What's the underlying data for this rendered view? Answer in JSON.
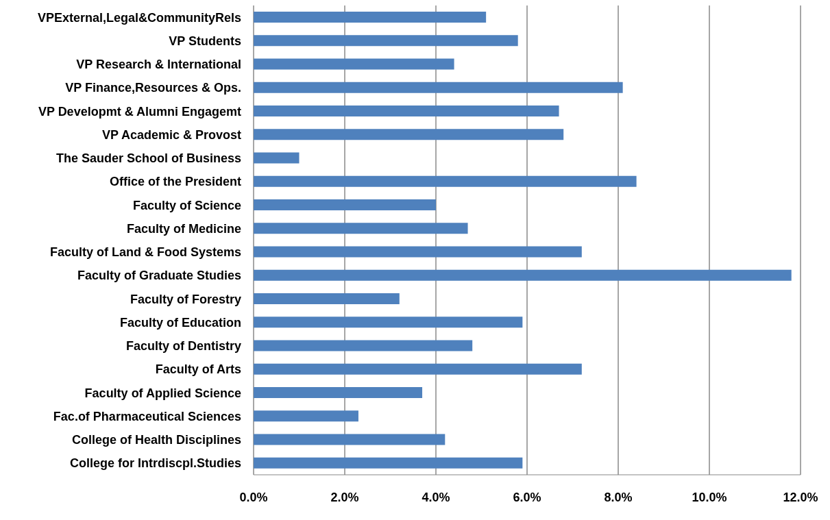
{
  "chart_data": {
    "type": "bar",
    "orientation": "horizontal",
    "grid": "x",
    "legend": false,
    "categories": [
      "VPExternal,Legal&CommunityRels",
      "VP Students",
      "VP Research & International",
      "VP Finance,Resources & Ops.",
      "VP Developmt & Alumni Engagemt",
      "VP Academic & Provost",
      "The Sauder School of Business",
      "Office of the President",
      "Faculty of Science",
      "Faculty of Medicine",
      "Faculty of Land & Food Systems",
      "Faculty of Graduate Studies",
      "Faculty of Forestry",
      "Faculty of Education",
      "Faculty of Dentistry",
      "Faculty of Arts",
      "Faculty of Applied Science",
      "Fac.of Pharmaceutical Sciences",
      "College of Health Disciplines",
      "College for Intrdiscpl.Studies"
    ],
    "values": [
      5.1,
      5.8,
      4.4,
      8.1,
      6.7,
      6.8,
      1.0,
      8.4,
      4.0,
      4.7,
      7.2,
      11.8,
      3.2,
      5.9,
      4.8,
      7.2,
      3.7,
      2.3,
      4.2,
      5.9
    ],
    "color": "#4f81bd",
    "xlim": [
      0,
      12
    ],
    "xticks": [
      {
        "value": 0,
        "label": "0.0%"
      },
      {
        "value": 2,
        "label": "2.0%"
      },
      {
        "value": 4,
        "label": "4.0%"
      },
      {
        "value": 6,
        "label": "6.0%"
      },
      {
        "value": 8,
        "label": "8.0%"
      },
      {
        "value": 10,
        "label": "10.0%"
      },
      {
        "value": 12,
        "label": "12.0%"
      }
    ]
  }
}
